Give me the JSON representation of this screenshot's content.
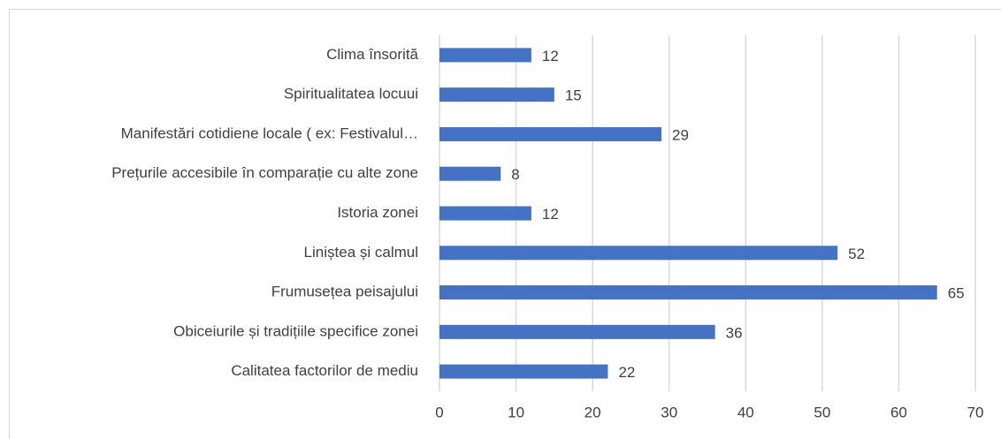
{
  "chart_data": {
    "type": "barh",
    "categories": [
      "Clima însorită",
      "Spiritualitatea locuui",
      "Manifestări cotidiene locale ( ex: Festivalul…",
      "Prețurile accesibile în comparație cu alte zone",
      "Istoria zonei",
      "Liniștea și calmul",
      "Frumusețea peisajului",
      "Obiceiurile și tradițiile specifice zonei",
      "Calitatea factorilor de mediu"
    ],
    "values": [
      12,
      15,
      29,
      8,
      12,
      52,
      65,
      36,
      22
    ],
    "color": "#4472c4",
    "xlim": [
      0,
      70
    ],
    "xticks": [
      0,
      10,
      20,
      30,
      40,
      50,
      60,
      70
    ],
    "grid": true
  }
}
